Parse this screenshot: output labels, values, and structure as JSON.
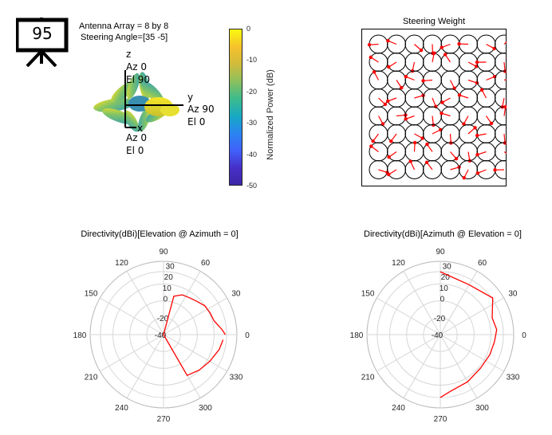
{
  "badge": {
    "number": "95"
  },
  "info": {
    "array_label": "Antenna Array = 8 by 8",
    "steering_label": "Steering Angle=[35 -5]"
  },
  "axes3d": {
    "z_name": "z",
    "z_az": "Az 0",
    "z_el": "El 90",
    "y_name": "y",
    "y_az": "Az 90",
    "y_el": "El 0",
    "x_name": "x",
    "x_az": "Az 0",
    "x_el": "El 0"
  },
  "colorbar": {
    "label": "Normalized Power (dB)",
    "ticks": [
      "0",
      "-10",
      "-20",
      "-30",
      "-40",
      "-50"
    ],
    "colors": [
      "#f9fb0e",
      "#f6c22c",
      "#d2bb3a",
      "#8fc05c",
      "#3fbc8a",
      "#17a9c5",
      "#2a84f0",
      "#4060fa",
      "#472fc8",
      "#3e26a8"
    ]
  },
  "weights": {
    "title": "Steering Weight",
    "rows": 8,
    "cols": 8,
    "dot_color": "#ff0000",
    "vector_color": "#ff0000"
  },
  "chart_data": [
    {
      "type": "polar",
      "title": "Directivity(dBi)[Elevation @ Azimuth = 0]",
      "angle_ticks": [
        "0",
        "30",
        "60",
        "90",
        "120",
        "150",
        "180",
        "210",
        "240",
        "270",
        "300",
        "330"
      ],
      "radial_ticks": [
        "30",
        "20",
        "10",
        "0",
        "-20",
        "-40"
      ],
      "radial_range": [
        -40,
        30
      ],
      "line_color": "#ff0000",
      "series": [
        {
          "points": [
            [
              0,
              19
            ],
            [
              5,
              16
            ],
            [
              15,
              10
            ],
            [
              25,
              9
            ],
            [
              35,
              8
            ],
            [
              45,
              5
            ],
            [
              55,
              3
            ],
            [
              65,
              2
            ],
            [
              75,
              -2
            ],
            [
              270,
              -40
            ],
            [
              300,
              5
            ],
            [
              315,
              8
            ],
            [
              330,
              11
            ],
            [
              345,
              15
            ],
            [
              355,
              17
            ]
          ]
        }
      ]
    },
    {
      "type": "polar",
      "title": "Directivity(dBi)[Azimuth @ Elevation = 0]",
      "angle_ticks": [
        "0",
        "30",
        "60",
        "90",
        "120",
        "150",
        "180",
        "210",
        "240",
        "270",
        "300",
        "330"
      ],
      "radial_ticks": [
        "30",
        "20",
        "10",
        "0",
        "-20",
        "-40"
      ],
      "radial_range": [
        -40,
        30
      ],
      "line_color": "#ff0000",
      "series": [
        {
          "points": [
            [
              90,
              20
            ],
            [
              60,
              15
            ],
            [
              35,
              21
            ],
            [
              18,
              12
            ],
            [
              5,
              14
            ],
            [
              -8,
              12
            ],
            [
              -22,
              11
            ],
            [
              -40,
              10
            ],
            [
              -60,
              12
            ],
            [
              -80,
              15
            ],
            [
              -90,
              20
            ]
          ]
        }
      ]
    }
  ]
}
